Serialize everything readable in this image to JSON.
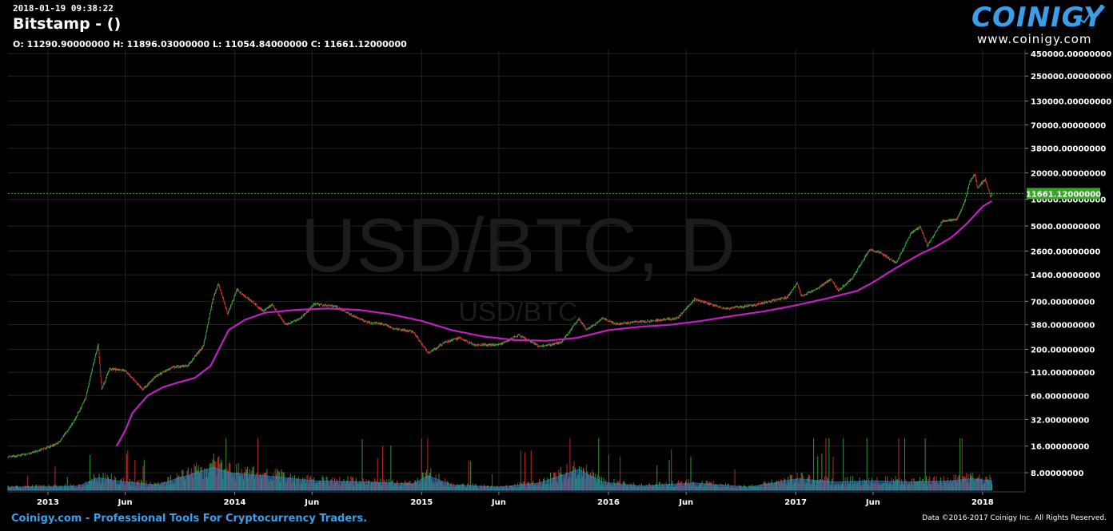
{
  "header": {
    "datetime": "2018-01-19 09:38:22",
    "title": "Bitstamp -  ()",
    "ohlc": "O: 11290.90000000 H: 11896.03000000 L: 11054.84000000 C: 11661.12000000"
  },
  "logo": {
    "name": "COINIGY",
    "url": "www.coinigy.com"
  },
  "watermark": {
    "large": "USD/BTC, D",
    "small": "USD/BTC"
  },
  "footer": {
    "left": "Coinigy.com - Professional Tools For Cryptocurrency Traders.",
    "right": "Data ©2016-2017 Coinigy Inc. All Rights Reserved."
  },
  "colors": {
    "up": "#3cb043",
    "down": "#e03030",
    "ma": "#c21ec2",
    "volume": "#2a80c8",
    "price_tag": "#3aa32a",
    "brand": "#3b9ee8"
  },
  "chart_data": {
    "type": "line",
    "y_scale": "log",
    "current_price": 11661.12,
    "current_price_label": "11661.12000000",
    "y_ticks": [
      {
        "value": 450000,
        "label": "450000.00000000"
      },
      {
        "value": 250000,
        "label": "250000.00000000"
      },
      {
        "value": 130000,
        "label": "130000.00000000"
      },
      {
        "value": 70000,
        "label": "70000.00000000"
      },
      {
        "value": 38000,
        "label": "38000.00000000"
      },
      {
        "value": 20000,
        "label": "20000.00000000"
      },
      {
        "value": 10000,
        "label": "10000.00000000"
      },
      {
        "value": 5000,
        "label": "5000.00000000"
      },
      {
        "value": 2600,
        "label": "2600.00000000"
      },
      {
        "value": 1400,
        "label": "1400.00000000"
      },
      {
        "value": 700,
        "label": "700.00000000"
      },
      {
        "value": 380,
        "label": "380.00000000"
      },
      {
        "value": 200,
        "label": "200.00000000"
      },
      {
        "value": 110,
        "label": "110.00000000"
      },
      {
        "value": 60,
        "label": "60.00000000"
      },
      {
        "value": 32,
        "label": "32.00000000"
      },
      {
        "value": 16,
        "label": "16.00000000"
      },
      {
        "value": 8,
        "label": "8.00000000"
      }
    ],
    "x_ticks": [
      "2013",
      "Jun",
      "2014",
      "Jun",
      "2015",
      "Jun",
      "2016",
      "Jun",
      "2017",
      "Jun",
      "2018"
    ],
    "x_tick_dates": [
      "2013-01-01",
      "2013-06-01",
      "2014-01-01",
      "2014-06-01",
      "2015-01-01",
      "2015-06-01",
      "2016-01-01",
      "2016-06-01",
      "2017-01-01",
      "2017-06-01",
      "2018-01-01"
    ],
    "x_range": [
      "2012-10-15",
      "2018-03-25"
    ],
    "series": [
      {
        "kind": "price",
        "points": [
          [
            "2012-10-15",
            12
          ],
          [
            "2012-12-01",
            13.5
          ],
          [
            "2013-01-20",
            17
          ],
          [
            "2013-02-20",
            30
          ],
          [
            "2013-03-15",
            55
          ],
          [
            "2013-04-09",
            230
          ],
          [
            "2013-04-16",
            70
          ],
          [
            "2013-05-01",
            120
          ],
          [
            "2013-06-01",
            115
          ],
          [
            "2013-07-05",
            70
          ],
          [
            "2013-08-01",
            100
          ],
          [
            "2013-09-01",
            125
          ],
          [
            "2013-10-01",
            130
          ],
          [
            "2013-11-01",
            220
          ],
          [
            "2013-11-18",
            700
          ],
          [
            "2013-11-30",
            1120
          ],
          [
            "2013-12-18",
            500
          ],
          [
            "2014-01-05",
            950
          ],
          [
            "2014-02-25",
            550
          ],
          [
            "2014-03-15",
            640
          ],
          [
            "2014-04-10",
            380
          ],
          [
            "2014-05-10",
            450
          ],
          [
            "2014-06-05",
            650
          ],
          [
            "2014-07-15",
            620
          ],
          [
            "2014-08-20",
            480
          ],
          [
            "2014-09-20",
            400
          ],
          [
            "2014-10-15",
            390
          ],
          [
            "2014-11-10",
            340
          ],
          [
            "2014-12-15",
            320
          ],
          [
            "2015-01-14",
            180
          ],
          [
            "2015-02-15",
            240
          ],
          [
            "2015-03-15",
            270
          ],
          [
            "2015-04-15",
            225
          ],
          [
            "2015-06-01",
            225
          ],
          [
            "2015-07-10",
            290
          ],
          [
            "2015-08-20",
            215
          ],
          [
            "2015-10-01",
            240
          ],
          [
            "2015-11-04",
            440
          ],
          [
            "2015-11-20",
            330
          ],
          [
            "2015-12-20",
            450
          ],
          [
            "2016-01-15",
            390
          ],
          [
            "2016-03-15",
            415
          ],
          [
            "2016-05-15",
            450
          ],
          [
            "2016-06-17",
            740
          ],
          [
            "2016-07-15",
            660
          ],
          [
            "2016-08-15",
            575
          ],
          [
            "2016-10-15",
            640
          ],
          [
            "2016-12-15",
            780
          ],
          [
            "2017-01-04",
            1130
          ],
          [
            "2017-01-12",
            800
          ],
          [
            "2017-02-15",
            1000
          ],
          [
            "2017-03-10",
            1250
          ],
          [
            "2017-03-25",
            930
          ],
          [
            "2017-04-20",
            1250
          ],
          [
            "2017-05-25",
            2700
          ],
          [
            "2017-06-15",
            2500
          ],
          [
            "2017-07-16",
            1900
          ],
          [
            "2017-08-15",
            4200
          ],
          [
            "2017-09-01",
            4900
          ],
          [
            "2017-09-15",
            3000
          ],
          [
            "2017-10-15",
            5700
          ],
          [
            "2017-11-12",
            5900
          ],
          [
            "2017-11-28",
            9800
          ],
          [
            "2017-12-07",
            16000
          ],
          [
            "2017-12-17",
            19500
          ],
          [
            "2017-12-22",
            13500
          ],
          [
            "2018-01-06",
            17000
          ],
          [
            "2018-01-17",
            10500
          ],
          [
            "2018-01-19",
            11661
          ]
        ]
      },
      {
        "kind": "moving_average",
        "points": [
          [
            "2013-05-15",
            16
          ],
          [
            "2013-06-01",
            24
          ],
          [
            "2013-06-15",
            38
          ],
          [
            "2013-07-15",
            60
          ],
          [
            "2013-08-15",
            75
          ],
          [
            "2013-09-15",
            85
          ],
          [
            "2013-10-15",
            95
          ],
          [
            "2013-11-15",
            130
          ],
          [
            "2013-12-01",
            200
          ],
          [
            "2013-12-20",
            330
          ],
          [
            "2014-01-20",
            430
          ],
          [
            "2014-03-01",
            520
          ],
          [
            "2014-05-01",
            560
          ],
          [
            "2014-07-01",
            580
          ],
          [
            "2014-09-01",
            560
          ],
          [
            "2014-11-01",
            500
          ],
          [
            "2015-01-01",
            420
          ],
          [
            "2015-03-01",
            330
          ],
          [
            "2015-05-01",
            280
          ],
          [
            "2015-07-01",
            255
          ],
          [
            "2015-09-01",
            250
          ],
          [
            "2015-11-01",
            270
          ],
          [
            "2016-01-01",
            330
          ],
          [
            "2016-03-01",
            360
          ],
          [
            "2016-05-01",
            380
          ],
          [
            "2016-07-01",
            420
          ],
          [
            "2016-09-01",
            480
          ],
          [
            "2016-11-01",
            540
          ],
          [
            "2017-01-01",
            630
          ],
          [
            "2017-03-01",
            750
          ],
          [
            "2017-05-01",
            920
          ],
          [
            "2017-06-01",
            1150
          ],
          [
            "2017-07-01",
            1480
          ],
          [
            "2017-08-01",
            1900
          ],
          [
            "2017-09-01",
            2400
          ],
          [
            "2017-10-01",
            2900
          ],
          [
            "2017-11-01",
            3700
          ],
          [
            "2017-12-01",
            5300
          ],
          [
            "2018-01-01",
            8300
          ],
          [
            "2018-01-19",
            9600
          ]
        ]
      },
      {
        "kind": "volume_envelope",
        "points": [
          [
            "2012-10-15",
            3
          ],
          [
            "2013-03-01",
            4
          ],
          [
            "2013-04-10",
            12
          ],
          [
            "2013-05-15",
            9
          ],
          [
            "2013-08-01",
            5
          ],
          [
            "2013-11-20",
            22
          ],
          [
            "2013-12-20",
            17
          ],
          [
            "2014-02-25",
            14
          ],
          [
            "2014-04-10",
            12
          ],
          [
            "2014-06-05",
            9
          ],
          [
            "2014-09-15",
            8
          ],
          [
            "2014-12-15",
            6
          ],
          [
            "2015-01-14",
            14
          ],
          [
            "2015-03-01",
            5
          ],
          [
            "2015-06-01",
            3
          ],
          [
            "2015-08-20",
            7
          ],
          [
            "2015-11-04",
            20
          ],
          [
            "2015-12-20",
            8
          ],
          [
            "2016-03-01",
            4
          ],
          [
            "2016-06-17",
            7
          ],
          [
            "2016-10-01",
            3
          ],
          [
            "2017-01-05",
            11
          ],
          [
            "2017-03-15",
            8
          ],
          [
            "2017-06-01",
            9
          ],
          [
            "2017-08-15",
            8
          ],
          [
            "2017-11-01",
            9
          ],
          [
            "2017-12-10",
            11
          ],
          [
            "2018-01-19",
            9
          ]
        ]
      }
    ]
  }
}
